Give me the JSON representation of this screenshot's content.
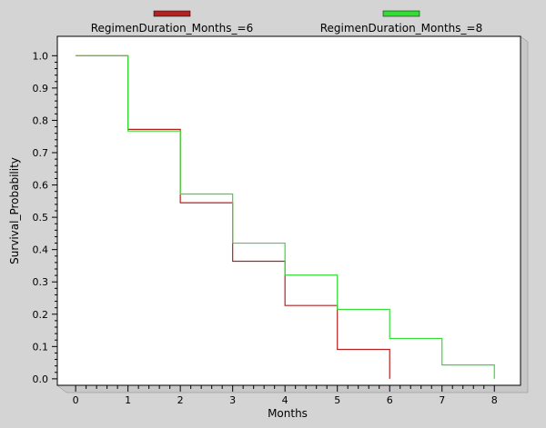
{
  "chart_data": {
    "type": "line",
    "xlabel": "Months",
    "ylabel": "Survival_Probability",
    "xlim": [
      -0.35,
      8.5
    ],
    "ylim": [
      -0.02,
      1.06
    ],
    "x_ticks": [
      "0",
      "1",
      "2",
      "3",
      "4",
      "5",
      "6",
      "7",
      "8"
    ],
    "y_ticks": [
      "0.0",
      "0.1",
      "0.2",
      "0.3",
      "0.4",
      "0.5",
      "0.6",
      "0.7",
      "0.8",
      "0.9",
      "1.0"
    ],
    "legend_position": "top",
    "series": [
      {
        "name": "RegimenDuration_Months_=6",
        "color": "#b22222",
        "step": true,
        "x": [
          0,
          1,
          2,
          3,
          4,
          5,
          6,
          6
        ],
        "y": [
          1.0,
          0.772,
          0.545,
          0.364,
          0.227,
          0.091,
          0.091,
          0.0
        ]
      },
      {
        "name": "RegimenDuration_Months_=8",
        "color": "#33dd33",
        "step": true,
        "x": [
          0,
          1,
          2,
          3,
          4,
          5,
          6,
          7,
          8,
          8
        ],
        "y": [
          1.0,
          0.767,
          0.572,
          0.42,
          0.321,
          0.215,
          0.125,
          0.043,
          0.043,
          0.0
        ]
      }
    ]
  }
}
